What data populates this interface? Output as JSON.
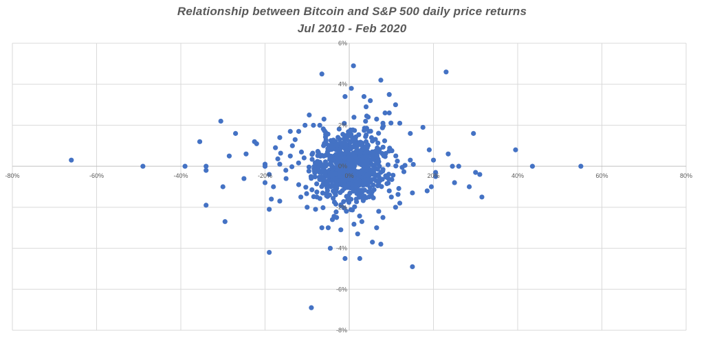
{
  "chart_data": {
    "type": "scatter",
    "title": "Relationship between Bitcoin and S&P 500  daily price returns",
    "subtitle": "Jul 2010 - Feb 2020",
    "xlabel": "",
    "ylabel": "",
    "xlim": [
      -0.8,
      0.8
    ],
    "ylim": [
      -0.08,
      0.06
    ],
    "x_ticks": [
      -0.8,
      -0.6,
      -0.4,
      -0.2,
      0,
      0.2,
      0.4,
      0.6,
      0.8
    ],
    "y_ticks": [
      -0.08,
      -0.06,
      -0.04,
      -0.02,
      0,
      0.02,
      0.04,
      0.06
    ],
    "x_tick_labels": [
      "-80%",
      "-60%",
      "-40%",
      "-20%",
      "0%",
      "20%",
      "40%",
      "60%",
      "80%"
    ],
    "y_tick_labels": [
      "-8%",
      "-6%",
      "-4%",
      "-2%",
      "0%",
      "2%",
      "4%",
      "6%"
    ],
    "grid": true,
    "legend": "none",
    "point_color": "#4472c4",
    "series": [
      {
        "outliers": [
          [
            -0.66,
            0.003
          ],
          [
            -0.49,
            0.0
          ],
          [
            -0.39,
            0.0
          ],
          [
            -0.34,
            0.0
          ],
          [
            -0.34,
            -0.002
          ],
          [
            -0.355,
            0.012
          ],
          [
            -0.305,
            0.022
          ],
          [
            -0.27,
            0.016
          ],
          [
            -0.285,
            0.005
          ],
          [
            -0.3,
            -0.01
          ],
          [
            -0.25,
            -0.006
          ],
          [
            -0.245,
            0.006
          ],
          [
            -0.225,
            0.012
          ],
          [
            -0.22,
            0.011
          ],
          [
            -0.34,
            -0.019
          ],
          [
            -0.295,
            -0.027
          ],
          [
            -0.19,
            -0.042
          ],
          [
            -0.19,
            -0.021
          ],
          [
            -0.2,
            0.0
          ],
          [
            -0.2,
            -0.008
          ],
          [
            -0.19,
            -0.004
          ],
          [
            -0.185,
            -0.016
          ],
          [
            -0.165,
            -0.017
          ],
          [
            -0.165,
            0.014
          ],
          [
            -0.165,
            0.001
          ],
          [
            -0.14,
            0.017
          ],
          [
            -0.12,
            0.017
          ],
          [
            -0.105,
            0.02
          ],
          [
            -0.115,
            -0.015
          ],
          [
            -0.12,
            -0.009
          ],
          [
            -0.065,
            0.045
          ],
          [
            0.01,
            0.049
          ],
          [
            0.075,
            0.042
          ],
          [
            0.23,
            0.046
          ],
          [
            0.095,
            0.035
          ],
          [
            0.05,
            0.032
          ],
          [
            0.04,
            0.029
          ],
          [
            0.11,
            0.03
          ],
          [
            0.085,
            0.026
          ],
          [
            0.005,
            0.038
          ],
          [
            -0.01,
            0.034
          ],
          [
            0.035,
            0.034
          ],
          [
            -0.095,
            0.025
          ],
          [
            0.175,
            0.019
          ],
          [
            0.295,
            0.016
          ],
          [
            0.395,
            0.008
          ],
          [
            0.435,
            0.0
          ],
          [
            0.55,
            0.0
          ],
          [
            0.31,
            -0.004
          ],
          [
            0.3,
            -0.003
          ],
          [
            0.285,
            -0.01
          ],
          [
            0.315,
            -0.015
          ],
          [
            0.25,
            -0.008
          ],
          [
            0.245,
            0.0
          ],
          [
            0.26,
            0.0
          ],
          [
            0.235,
            0.006
          ],
          [
            0.19,
            0.008
          ],
          [
            0.2,
            0.003
          ],
          [
            0.205,
            -0.003
          ],
          [
            0.185,
            -0.012
          ],
          [
            0.195,
            -0.01
          ],
          [
            0.205,
            -0.005
          ],
          [
            0.145,
            0.003
          ],
          [
            0.15,
            -0.013
          ],
          [
            0.12,
            -0.018
          ],
          [
            0.11,
            -0.02
          ],
          [
            0.095,
            -0.012
          ],
          [
            0.145,
            0.016
          ],
          [
            0.12,
            0.021
          ],
          [
            0.095,
            0.026
          ],
          [
            0.08,
            0.021
          ],
          [
            0.065,
            0.023
          ],
          [
            0.045,
            0.024
          ],
          [
            -0.07,
            0.02
          ],
          [
            -0.06,
            0.023
          ],
          [
            -0.085,
            0.02
          ],
          [
            0.15,
            -0.049
          ],
          [
            0.025,
            -0.045
          ],
          [
            -0.01,
            -0.045
          ],
          [
            -0.045,
            -0.04
          ],
          [
            -0.09,
            -0.069
          ],
          [
            0.075,
            -0.038
          ],
          [
            0.055,
            -0.037
          ],
          [
            -0.05,
            -0.03
          ],
          [
            -0.065,
            -0.03
          ],
          [
            -0.2,
            0.001
          ],
          [
            -0.18,
            -0.01
          ],
          [
            -0.15,
            -0.006
          ],
          [
            -0.14,
            0.005
          ],
          [
            -0.135,
            0.01
          ],
          [
            -0.1,
            -0.02
          ],
          [
            -0.08,
            -0.021
          ],
          [
            0.07,
            -0.022
          ],
          [
            0.08,
            -0.025
          ],
          [
            0.1,
            -0.015
          ],
          [
            0.065,
            -0.03
          ],
          [
            0.02,
            -0.033
          ],
          [
            -0.02,
            -0.031
          ],
          [
            -0.04,
            -0.026
          ],
          [
            -0.03,
            -0.025
          ],
          [
            0.03,
            -0.027
          ]
        ],
        "core_cloud": {
          "count": 700,
          "x_spread": 0.05,
          "y_spread": 0.0085,
          "seed": 20100720
        }
      }
    ]
  }
}
